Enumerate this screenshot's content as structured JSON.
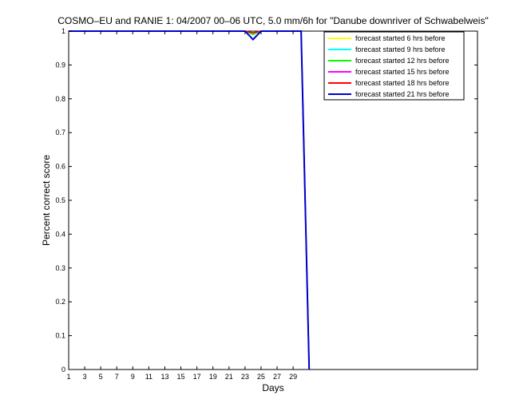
{
  "chart_data": {
    "type": "line",
    "title": "COSMO–EU and RANIE 1: 04/2007 00–06 UTC, 5.0 mm/6h for \"Danube downriver of Schwabelweis\"",
    "xlabel": "Days",
    "ylabel": "Percent correct score",
    "xlim": [
      1,
      52
    ],
    "ylim": [
      0,
      1
    ],
    "xticks": [
      1,
      3,
      5,
      7,
      9,
      11,
      13,
      15,
      17,
      19,
      21,
      23,
      25,
      27,
      29
    ],
    "yticks": [
      0,
      0.1,
      0.2,
      0.3,
      0.4,
      0.5,
      0.6,
      0.7,
      0.8,
      0.9,
      1
    ],
    "ytick_labels": [
      "0",
      "0.1",
      "0.2",
      "0.3",
      "0.4",
      "0.5",
      "0.6",
      "0.7",
      "0.8",
      "0.9",
      "1"
    ],
    "legend_position": "top-right",
    "grid": false,
    "series": [
      {
        "name": "forecast started 6 hrs before",
        "color": "#ffff00",
        "x": [
          1,
          23,
          24,
          25,
          30,
          31
        ],
        "y": [
          1,
          1,
          0.99,
          1,
          1,
          0
        ]
      },
      {
        "name": "forecast started 9 hrs before",
        "color": "#00ffff",
        "x": [
          1,
          23,
          24,
          25,
          30,
          31
        ],
        "y": [
          1,
          1,
          0.99,
          1,
          1,
          0
        ]
      },
      {
        "name": "forecast started 12 hrs before",
        "color": "#00ff00",
        "x": [
          1,
          23,
          24,
          25,
          30,
          31
        ],
        "y": [
          1,
          1,
          0.99,
          1,
          1,
          0
        ]
      },
      {
        "name": "forecast started 15 hrs before",
        "color": "#ff00ff",
        "x": [
          1,
          23,
          24,
          25,
          30,
          31
        ],
        "y": [
          1,
          1,
          0.995,
          1,
          1,
          0
        ]
      },
      {
        "name": "forecast started 18 hrs before",
        "color": "#ff0000",
        "x": [
          1,
          23,
          24,
          25,
          30,
          31
        ],
        "y": [
          1,
          1,
          0.995,
          1,
          1,
          0
        ]
      },
      {
        "name": "forecast started 21 hrs before",
        "color": "#0000cc",
        "x": [
          1,
          23,
          24,
          25,
          30,
          31
        ],
        "y": [
          1,
          1,
          0.975,
          1,
          1,
          0
        ]
      }
    ]
  }
}
